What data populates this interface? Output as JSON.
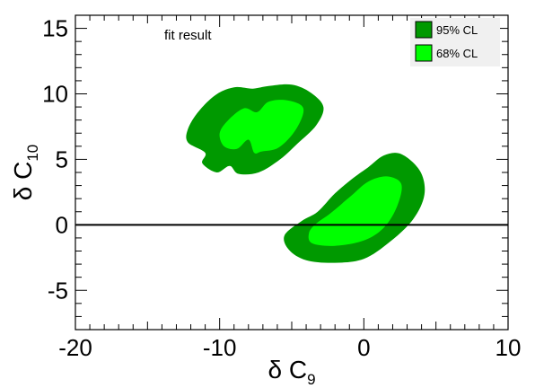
{
  "chart_data": {
    "type": "contour",
    "title": "",
    "xlabel": {
      "symbol": "δ C",
      "subscript": "9"
    },
    "ylabel": {
      "symbol": "δ C",
      "subscript": "10"
    },
    "xlim": [
      -20,
      10
    ],
    "ylim": [
      -8,
      16
    ],
    "x_ticks": [
      -20,
      -10,
      0,
      10
    ],
    "y_ticks": [
      -5,
      0,
      5,
      10,
      15
    ],
    "x_tick_labels": [
      "-20",
      "-10",
      "0",
      "10"
    ],
    "y_tick_labels": [
      "-5",
      "0",
      "5",
      "10",
      "15"
    ],
    "reference_line": {
      "y": 0,
      "color": "#000000"
    },
    "annotation": "fit result",
    "legend_position": "top-right",
    "series": [
      {
        "name": "95% CL",
        "color": "#009900",
        "regions": [
          [
            [
              -11.0,
              5.5
            ],
            [
              -12.2,
              6.3
            ],
            [
              -12.2,
              7.3
            ],
            [
              -11.5,
              8.6
            ],
            [
              -10.3,
              9.9
            ],
            [
              -9.0,
              10.5
            ],
            [
              -7.7,
              10.4
            ],
            [
              -6.6,
              10.6
            ],
            [
              -5.0,
              10.7
            ],
            [
              -3.7,
              10.1
            ],
            [
              -2.8,
              9.0
            ],
            [
              -3.3,
              7.6
            ],
            [
              -4.6,
              6.2
            ],
            [
              -5.8,
              5.0
            ],
            [
              -7.3,
              4.0
            ],
            [
              -8.7,
              3.9
            ],
            [
              -9.3,
              4.5
            ],
            [
              -10.2,
              4.0
            ],
            [
              -11.2,
              4.7
            ]
          ],
          [
            [
              -5.5,
              -0.8
            ],
            [
              -5.2,
              -1.9
            ],
            [
              -4.0,
              -2.7
            ],
            [
              -2.0,
              -2.9
            ],
            [
              0.0,
              -2.6
            ],
            [
              1.8,
              -1.3
            ],
            [
              3.4,
              0.4
            ],
            [
              4.2,
              2.3
            ],
            [
              3.9,
              4.1
            ],
            [
              2.6,
              5.4
            ],
            [
              1.4,
              5.3
            ],
            [
              0.3,
              4.4
            ],
            [
              -0.7,
              3.6
            ],
            [
              -2.0,
              2.4
            ],
            [
              -3.2,
              1.0
            ],
            [
              -4.3,
              0.3
            ]
          ]
        ]
      },
      {
        "name": "68% CL",
        "color": "#00ff00",
        "regions": [
          [
            [
              -9.7,
              6.0
            ],
            [
              -10.0,
              7.0
            ],
            [
              -9.4,
              8.0
            ],
            [
              -8.3,
              8.9
            ],
            [
              -7.4,
              8.6
            ],
            [
              -6.6,
              9.4
            ],
            [
              -5.3,
              9.5
            ],
            [
              -4.2,
              8.9
            ],
            [
              -4.7,
              7.3
            ],
            [
              -5.9,
              5.9
            ],
            [
              -7.1,
              5.6
            ],
            [
              -7.6,
              5.5
            ],
            [
              -8.0,
              6.5
            ],
            [
              -8.8,
              5.8
            ]
          ],
          [
            [
              -3.8,
              -0.6
            ],
            [
              -3.6,
              -1.4
            ],
            [
              -2.0,
              -1.6
            ],
            [
              0.0,
              -1.2
            ],
            [
              1.4,
              -0.2
            ],
            [
              2.3,
              1.4
            ],
            [
              2.6,
              3.1
            ],
            [
              1.6,
              3.7
            ],
            [
              0.3,
              3.3
            ],
            [
              -0.9,
              2.2
            ],
            [
              -2.3,
              0.9
            ],
            [
              -3.3,
              0.1
            ]
          ]
        ]
      }
    ]
  },
  "legend": {
    "items": [
      {
        "label": "95% CL",
        "color": "#009900"
      },
      {
        "label": "68% CL",
        "color": "#00ff00"
      }
    ]
  }
}
